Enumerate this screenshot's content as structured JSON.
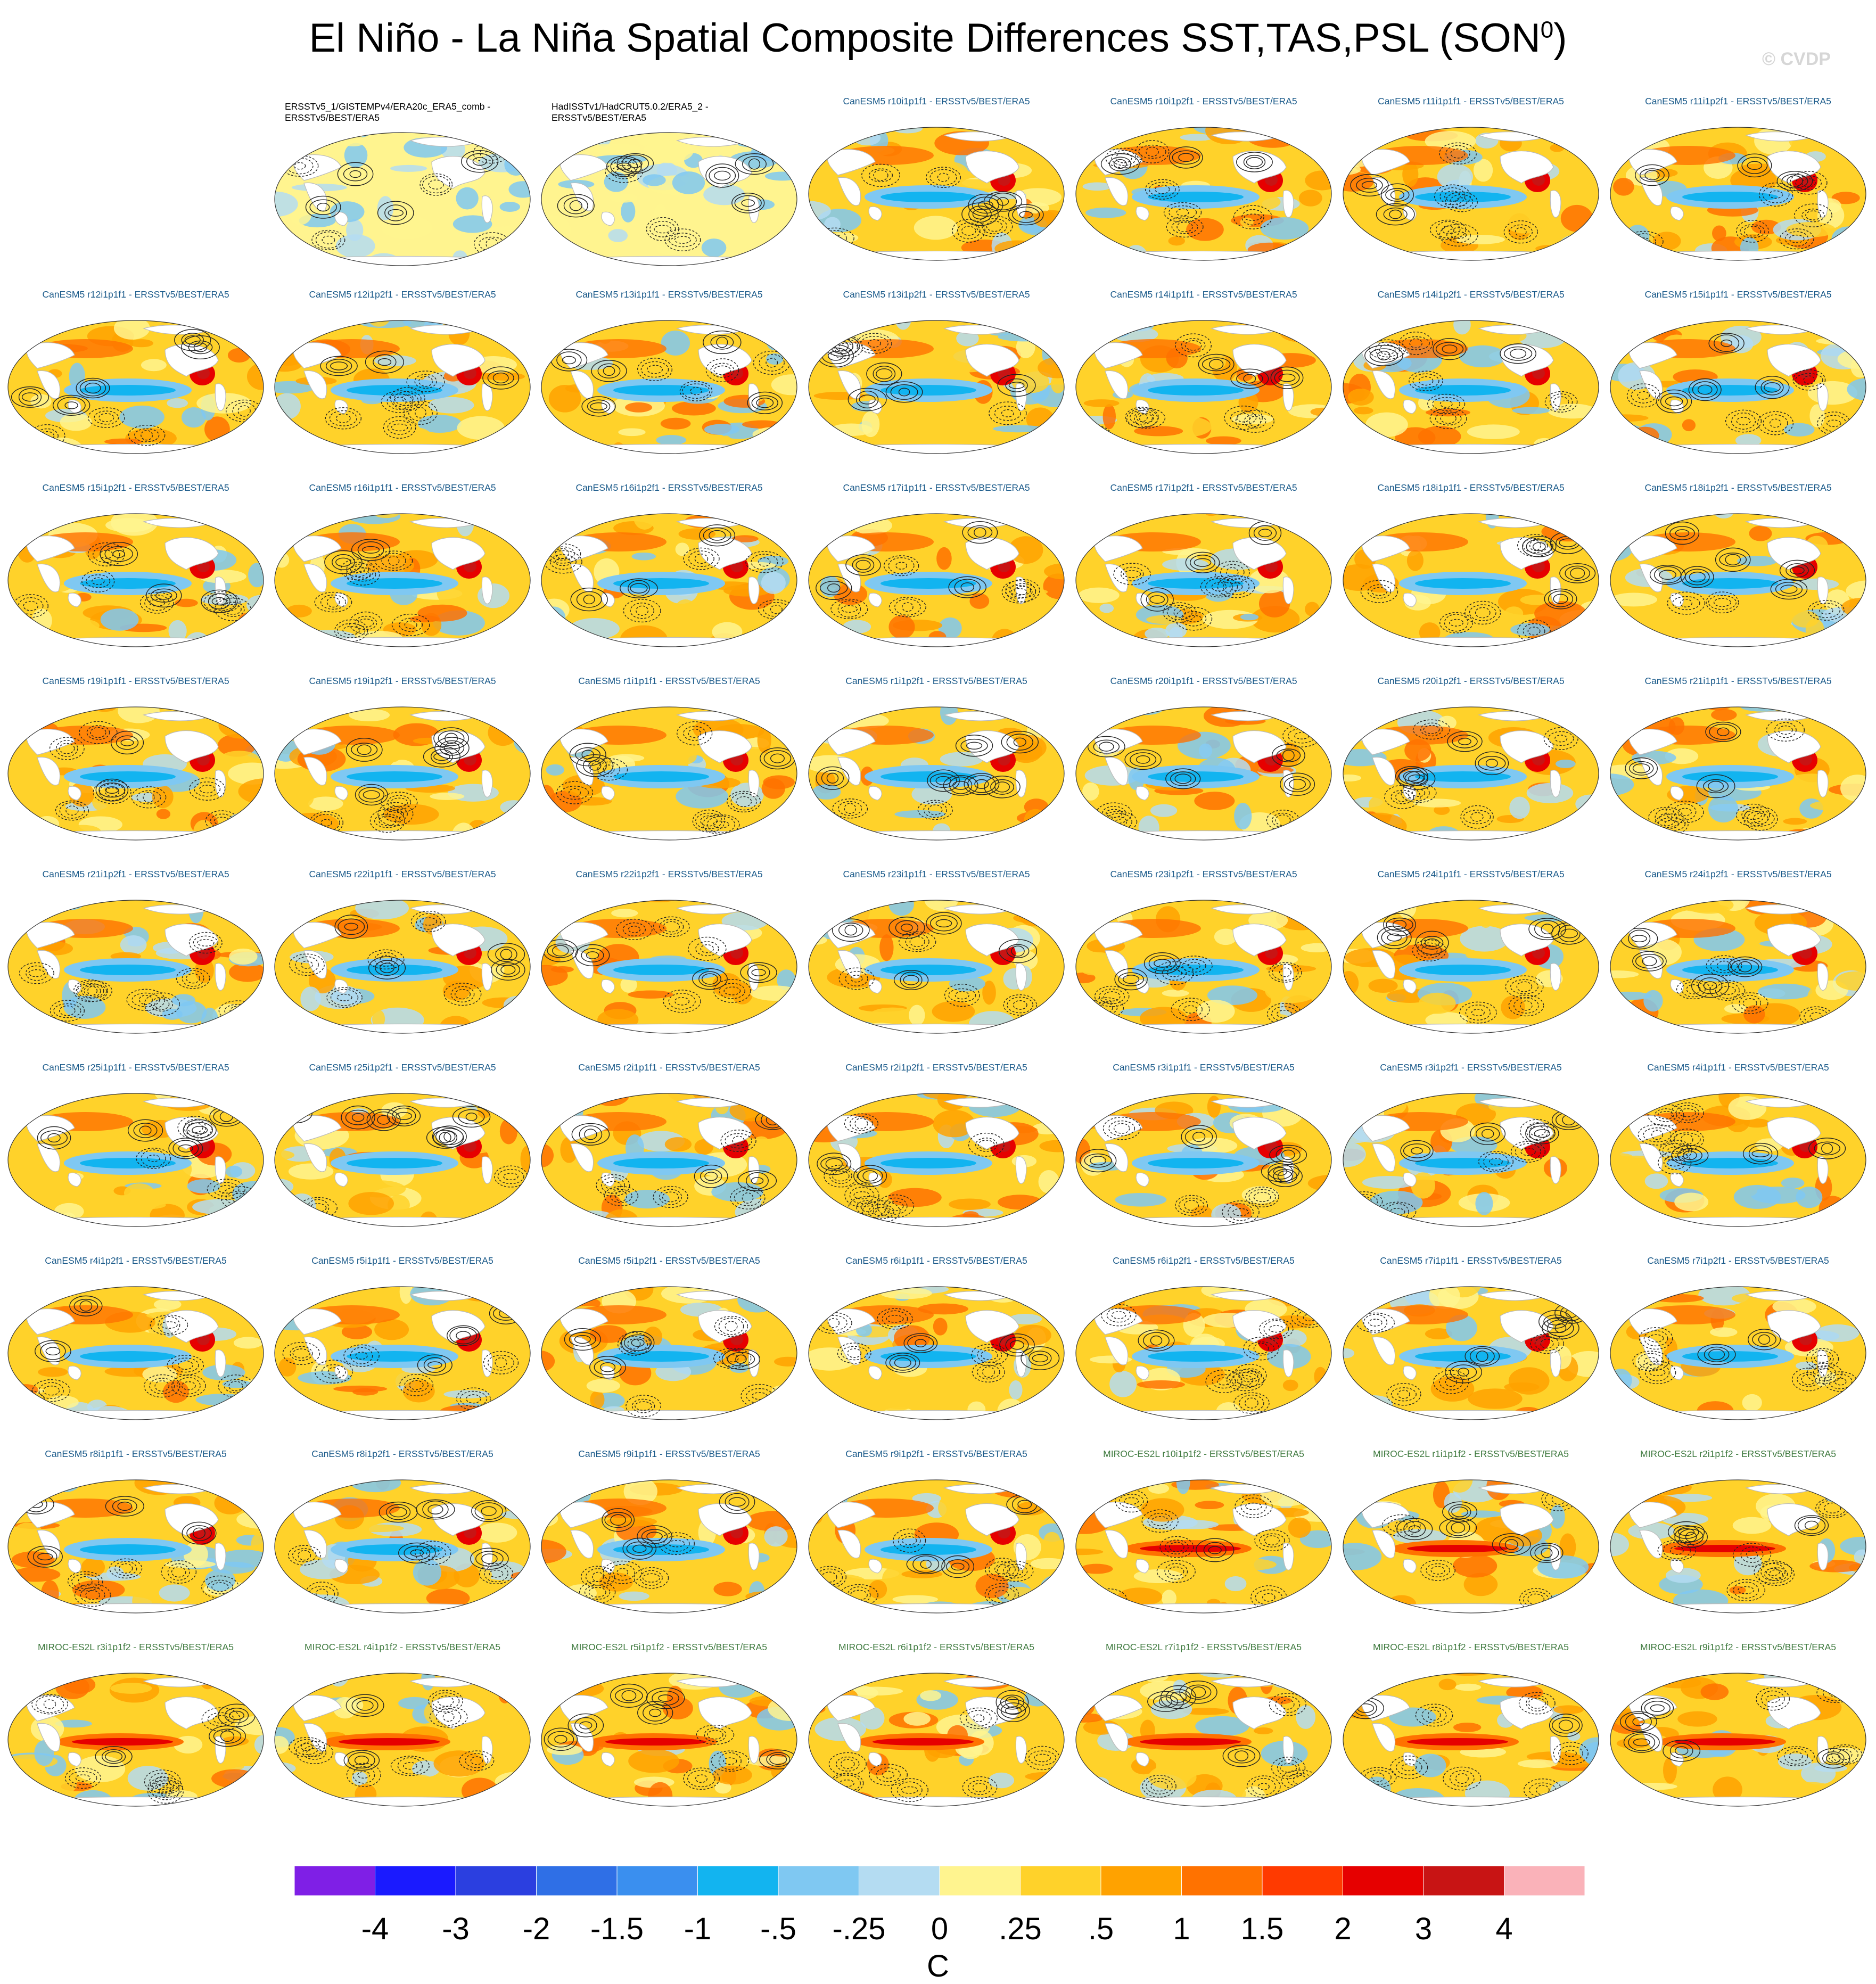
{
  "title": "El Niño - La Niña Spatial Composite Differences SST,TAS,PSL (SON",
  "title_superscript": "0",
  "title_suffix": ")",
  "copyright": "© CVDP",
  "colors": {
    "obs_label": "#000000",
    "canesm_label": "#1a5a8a",
    "miroc_label": "#3f7a3f",
    "land_mask": "#ffffff",
    "contour": "#222222"
  },
  "panels": [
    {
      "label": "ERSSTv5_1/GISTEMPv4/ERA20c_ERA5_comb -\nERSSTv5/BEST/ERA5",
      "group": "obs",
      "row": 0,
      "col": 1
    },
    {
      "label": "HadISSTv1/HadCRUT5.0.2/ERA5_2 -\nERSSTv5/BEST/ERA5",
      "group": "obs",
      "row": 0,
      "col": 2
    },
    {
      "label": "CanESM5 r10i1p1f1 - ERSSTv5/BEST/ERA5",
      "group": "can",
      "row": 0,
      "col": 3
    },
    {
      "label": "CanESM5 r10i1p2f1 - ERSSTv5/BEST/ERA5",
      "group": "can",
      "row": 0,
      "col": 4
    },
    {
      "label": "CanESM5 r11i1p1f1 - ERSSTv5/BEST/ERA5",
      "group": "can",
      "row": 0,
      "col": 5
    },
    {
      "label": "CanESM5 r11i1p2f1 - ERSSTv5/BEST/ERA5",
      "group": "can",
      "row": 0,
      "col": 6
    },
    {
      "label": "CanESM5 r12i1p1f1 - ERSSTv5/BEST/ERA5",
      "group": "can",
      "row": 1,
      "col": 0
    },
    {
      "label": "CanESM5 r12i1p2f1 - ERSSTv5/BEST/ERA5",
      "group": "can",
      "row": 1,
      "col": 1
    },
    {
      "label": "CanESM5 r13i1p1f1 - ERSSTv5/BEST/ERA5",
      "group": "can",
      "row": 1,
      "col": 2
    },
    {
      "label": "CanESM5 r13i1p2f1 - ERSSTv5/BEST/ERA5",
      "group": "can",
      "row": 1,
      "col": 3
    },
    {
      "label": "CanESM5 r14i1p1f1 - ERSSTv5/BEST/ERA5",
      "group": "can",
      "row": 1,
      "col": 4
    },
    {
      "label": "CanESM5 r14i1p2f1 - ERSSTv5/BEST/ERA5",
      "group": "can",
      "row": 1,
      "col": 5
    },
    {
      "label": "CanESM5 r15i1p1f1 - ERSSTv5/BEST/ERA5",
      "group": "can",
      "row": 1,
      "col": 6
    },
    {
      "label": "CanESM5 r15i1p2f1 - ERSSTv5/BEST/ERA5",
      "group": "can",
      "row": 2,
      "col": 0
    },
    {
      "label": "CanESM5 r16i1p1f1 - ERSSTv5/BEST/ERA5",
      "group": "can",
      "row": 2,
      "col": 1
    },
    {
      "label": "CanESM5 r16i1p2f1 - ERSSTv5/BEST/ERA5",
      "group": "can",
      "row": 2,
      "col": 2
    },
    {
      "label": "CanESM5 r17i1p1f1 - ERSSTv5/BEST/ERA5",
      "group": "can",
      "row": 2,
      "col": 3
    },
    {
      "label": "CanESM5 r17i1p2f1 - ERSSTv5/BEST/ERA5",
      "group": "can",
      "row": 2,
      "col": 4
    },
    {
      "label": "CanESM5 r18i1p1f1 - ERSSTv5/BEST/ERA5",
      "group": "can",
      "row": 2,
      "col": 5
    },
    {
      "label": "CanESM5 r18i1p2f1 - ERSSTv5/BEST/ERA5",
      "group": "can",
      "row": 2,
      "col": 6
    },
    {
      "label": "CanESM5 r19i1p1f1 - ERSSTv5/BEST/ERA5",
      "group": "can",
      "row": 3,
      "col": 0
    },
    {
      "label": "CanESM5 r19i1p2f1 - ERSSTv5/BEST/ERA5",
      "group": "can",
      "row": 3,
      "col": 1
    },
    {
      "label": "CanESM5 r1i1p1f1 - ERSSTv5/BEST/ERA5",
      "group": "can",
      "row": 3,
      "col": 2
    },
    {
      "label": "CanESM5 r1i1p2f1 - ERSSTv5/BEST/ERA5",
      "group": "can",
      "row": 3,
      "col": 3
    },
    {
      "label": "CanESM5 r20i1p1f1 - ERSSTv5/BEST/ERA5",
      "group": "can",
      "row": 3,
      "col": 4
    },
    {
      "label": "CanESM5 r20i1p2f1 - ERSSTv5/BEST/ERA5",
      "group": "can",
      "row": 3,
      "col": 5
    },
    {
      "label": "CanESM5 r21i1p1f1 - ERSSTv5/BEST/ERA5",
      "group": "can",
      "row": 3,
      "col": 6
    },
    {
      "label": "CanESM5 r21i1p2f1 - ERSSTv5/BEST/ERA5",
      "group": "can",
      "row": 4,
      "col": 0
    },
    {
      "label": "CanESM5 r22i1p1f1 - ERSSTv5/BEST/ERA5",
      "group": "can",
      "row": 4,
      "col": 1
    },
    {
      "label": "CanESM5 r22i1p2f1 - ERSSTv5/BEST/ERA5",
      "group": "can",
      "row": 4,
      "col": 2
    },
    {
      "label": "CanESM5 r23i1p1f1 - ERSSTv5/BEST/ERA5",
      "group": "can",
      "row": 4,
      "col": 3
    },
    {
      "label": "CanESM5 r23i1p2f1 - ERSSTv5/BEST/ERA5",
      "group": "can",
      "row": 4,
      "col": 4
    },
    {
      "label": "CanESM5 r24i1p1f1 - ERSSTv5/BEST/ERA5",
      "group": "can",
      "row": 4,
      "col": 5
    },
    {
      "label": "CanESM5 r24i1p2f1 - ERSSTv5/BEST/ERA5",
      "group": "can",
      "row": 4,
      "col": 6
    },
    {
      "label": "CanESM5 r25i1p1f1 - ERSSTv5/BEST/ERA5",
      "group": "can",
      "row": 5,
      "col": 0
    },
    {
      "label": "CanESM5 r25i1p2f1 - ERSSTv5/BEST/ERA5",
      "group": "can",
      "row": 5,
      "col": 1
    },
    {
      "label": "CanESM5 r2i1p1f1 - ERSSTv5/BEST/ERA5",
      "group": "can",
      "row": 5,
      "col": 2
    },
    {
      "label": "CanESM5 r2i1p2f1 - ERSSTv5/BEST/ERA5",
      "group": "can",
      "row": 5,
      "col": 3
    },
    {
      "label": "CanESM5 r3i1p1f1 - ERSSTv5/BEST/ERA5",
      "group": "can",
      "row": 5,
      "col": 4
    },
    {
      "label": "CanESM5 r3i1p2f1 - ERSSTv5/BEST/ERA5",
      "group": "can",
      "row": 5,
      "col": 5
    },
    {
      "label": "CanESM5 r4i1p1f1 - ERSSTv5/BEST/ERA5",
      "group": "can",
      "row": 5,
      "col": 6
    },
    {
      "label": "CanESM5 r4i1p2f1 - ERSSTv5/BEST/ERA5",
      "group": "can",
      "row": 6,
      "col": 0
    },
    {
      "label": "CanESM5 r5i1p1f1 - ERSSTv5/BEST/ERA5",
      "group": "can",
      "row": 6,
      "col": 1
    },
    {
      "label": "CanESM5 r5i1p2f1 - ERSSTv5/BEST/ERA5",
      "group": "can",
      "row": 6,
      "col": 2
    },
    {
      "label": "CanESM5 r6i1p1f1 - ERSSTv5/BEST/ERA5",
      "group": "can",
      "row": 6,
      "col": 3
    },
    {
      "label": "CanESM5 r6i1p2f1 - ERSSTv5/BEST/ERA5",
      "group": "can",
      "row": 6,
      "col": 4
    },
    {
      "label": "CanESM5 r7i1p1f1 - ERSSTv5/BEST/ERA5",
      "group": "can",
      "row": 6,
      "col": 5
    },
    {
      "label": "CanESM5 r7i1p2f1 - ERSSTv5/BEST/ERA5",
      "group": "can",
      "row": 6,
      "col": 6
    },
    {
      "label": "CanESM5 r8i1p1f1 - ERSSTv5/BEST/ERA5",
      "group": "can",
      "row": 7,
      "col": 0
    },
    {
      "label": "CanESM5 r8i1p2f1 - ERSSTv5/BEST/ERA5",
      "group": "can",
      "row": 7,
      "col": 1
    },
    {
      "label": "CanESM5 r9i1p1f1 - ERSSTv5/BEST/ERA5",
      "group": "can",
      "row": 7,
      "col": 2
    },
    {
      "label": "CanESM5 r9i1p2f1 - ERSSTv5/BEST/ERA5",
      "group": "can",
      "row": 7,
      "col": 3
    },
    {
      "label": "MIROC-ES2L r10i1p1f2 - ERSSTv5/BEST/ERA5",
      "group": "miroc",
      "row": 7,
      "col": 4
    },
    {
      "label": "MIROC-ES2L r1i1p1f2 - ERSSTv5/BEST/ERA5",
      "group": "miroc",
      "row": 7,
      "col": 5
    },
    {
      "label": "MIROC-ES2L r2i1p1f2 - ERSSTv5/BEST/ERA5",
      "group": "miroc",
      "row": 7,
      "col": 6
    },
    {
      "label": "MIROC-ES2L r3i1p1f2 - ERSSTv5/BEST/ERA5",
      "group": "miroc",
      "row": 8,
      "col": 0
    },
    {
      "label": "MIROC-ES2L r4i1p1f2 - ERSSTv5/BEST/ERA5",
      "group": "miroc",
      "row": 8,
      "col": 1
    },
    {
      "label": "MIROC-ES2L r5i1p1f2 - ERSSTv5/BEST/ERA5",
      "group": "miroc",
      "row": 8,
      "col": 2
    },
    {
      "label": "MIROC-ES2L r6i1p1f2 - ERSSTv5/BEST/ERA5",
      "group": "miroc",
      "row": 8,
      "col": 3
    },
    {
      "label": "MIROC-ES2L r7i1p1f2 - ERSSTv5/BEST/ERA5",
      "group": "miroc",
      "row": 8,
      "col": 4
    },
    {
      "label": "MIROC-ES2L r8i1p1f2 - ERSSTv5/BEST/ERA5",
      "group": "miroc",
      "row": 8,
      "col": 5
    },
    {
      "label": "MIROC-ES2L r9i1p1f2 - ERSSTv5/BEST/ERA5",
      "group": "miroc",
      "row": 8,
      "col": 6
    }
  ],
  "colorbar": {
    "colors": [
      "#7f1fe6",
      "#1a1aff",
      "#2b3fe0",
      "#2f6fe6",
      "#3a8fef",
      "#12b4f0",
      "#7fc8f2",
      "#b4dcf2",
      "#fff48f",
      "#ffd22a",
      "#ffa200",
      "#ff7200",
      "#ff3a00",
      "#e60000",
      "#c81414",
      "#fab2b9"
    ],
    "ticks": [
      "-4",
      "-3",
      "-2",
      "-1.5",
      "-1",
      "-.5",
      "-.25",
      "0",
      ".25",
      ".5",
      "1",
      "1.5",
      "2",
      "3",
      "4"
    ],
    "units": "C"
  }
}
